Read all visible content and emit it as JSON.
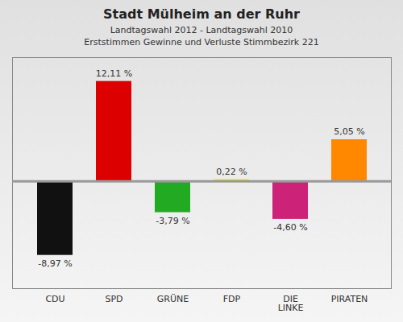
{
  "chart_data": {
    "type": "bar",
    "title": "Stadt Mülheim an der Ruhr",
    "subtitle": [
      "Landtagswahl 2012 - Landtagswahl 2010",
      "Erststimmen Gewinne und Verluste Stimmbezirk 221"
    ],
    "categories": [
      "CDU",
      "SPD",
      "GRÜNE",
      "FDP",
      "DIE\nLINKE",
      "PIRATEN"
    ],
    "values": [
      -8.97,
      12.11,
      -3.79,
      0.22,
      -4.6,
      5.05
    ],
    "value_labels": [
      "-8,97 %",
      "12,11 %",
      "-3,79 %",
      "0,22 %",
      "-4,60 %",
      "5,05 %"
    ],
    "colors": [
      "#111111",
      "#dd0000",
      "#22aa22",
      "#eeee00",
      "#cc2277",
      "#ff8800"
    ],
    "ylim": [
      -13,
      15
    ],
    "data_labels": true,
    "tick_labels": "x",
    "grid": false
  }
}
